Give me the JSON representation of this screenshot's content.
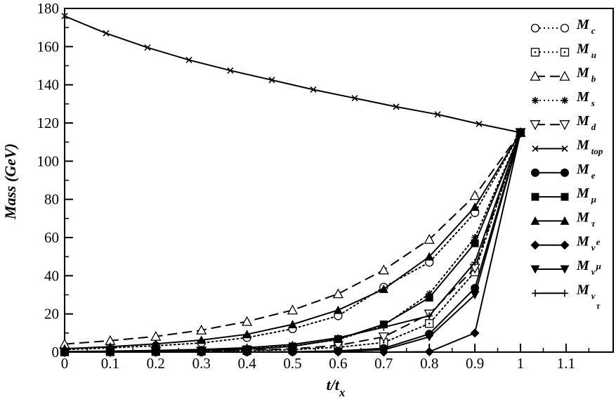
{
  "chart_data": {
    "type": "line",
    "xlabel": {
      "main": "t/t",
      "sub": "x"
    },
    "ylabel": "Mass (GeV)",
    "xlim": [
      0,
      1.2
    ],
    "ylim": [
      0,
      180
    ],
    "x_ticks": [
      "0",
      "0.1",
      "0.2",
      "0.3",
      "0.4",
      "0.5",
      "0.6",
      "0.7",
      "0.8",
      "0.9",
      "1",
      "1.1"
    ],
    "y_ticks": [
      "0",
      "20",
      "40",
      "60",
      "80",
      "100",
      "120",
      "140",
      "160",
      "180"
    ],
    "grid": false,
    "legend_position": "right",
    "series": [
      {
        "name": "M",
        "sub": "c",
        "marker": "circle-open",
        "dash": "dotted",
        "x": [
          0,
          0.1,
          0.2,
          0.3,
          0.4,
          0.5,
          0.6,
          0.7,
          0.8,
          0.9,
          1.0
        ],
        "y": [
          1.3,
          2.2,
          3.3,
          4.8,
          7.6,
          12.2,
          19,
          34,
          47,
          73,
          115
        ]
      },
      {
        "name": "M",
        "sub": "u",
        "marker": "square-dot",
        "dash": "dotted",
        "x": [
          0,
          0.1,
          0.2,
          0.3,
          0.4,
          0.5,
          0.6,
          0.7,
          0.8,
          0.9,
          1.0
        ],
        "y": [
          0.1,
          0.2,
          0.3,
          0.5,
          0.8,
          1.3,
          2.5,
          5,
          15,
          42,
          115
        ]
      },
      {
        "name": "M",
        "sub": "b",
        "marker": "triangle-open",
        "dash": "dashed",
        "x": [
          0,
          0.1,
          0.2,
          0.3,
          0.4,
          0.5,
          0.6,
          0.7,
          0.8,
          0.9,
          1.0
        ],
        "y": [
          4.2,
          6,
          8.2,
          11.5,
          16,
          22,
          30.5,
          43,
          59,
          82,
          115
        ]
      },
      {
        "name": "M",
        "sub": "s",
        "marker": "star",
        "dash": "dotted",
        "x": [
          0,
          0.1,
          0.2,
          0.3,
          0.4,
          0.5,
          0.6,
          0.7,
          0.8,
          0.9,
          1.0
        ],
        "y": [
          0.2,
          0.4,
          0.7,
          1.1,
          1.8,
          3.2,
          6.5,
          14,
          30.5,
          60,
          115
        ]
      },
      {
        "name": "M",
        "sub": "d",
        "marker": "triangle-down-open",
        "dash": "dashed",
        "x": [
          0,
          0.1,
          0.2,
          0.3,
          0.4,
          0.5,
          0.6,
          0.7,
          0.8,
          0.9,
          1.0
        ],
        "y": [
          0.1,
          0.2,
          0.4,
          0.6,
          1,
          1.7,
          3.5,
          8,
          20,
          44,
          115
        ]
      },
      {
        "name": "M",
        "sub": "top",
        "marker": "x",
        "dash": "solid",
        "x": [
          0,
          0.0909,
          0.1818,
          0.2727,
          0.3636,
          0.4545,
          0.5455,
          0.6364,
          0.7273,
          0.8182,
          0.9091,
          1.0
        ],
        "y": [
          176,
          167,
          159.5,
          153,
          147.5,
          142.5,
          137.5,
          133,
          128.5,
          124.5,
          119.5,
          115
        ]
      },
      {
        "name": "M",
        "sub": "e",
        "marker": "circle-filled",
        "dash": "solid",
        "x": [
          0,
          0.1,
          0.2,
          0.3,
          0.4,
          0.5,
          0.6,
          0.7,
          0.8,
          0.9,
          1.0
        ],
        "y": [
          0,
          0,
          0,
          0,
          0.1,
          0.2,
          0.6,
          2,
          9.5,
          33.5,
          115
        ]
      },
      {
        "name": "M",
        "sub": "μ",
        "marker": "square-filled",
        "dash": "solid",
        "x": [
          0,
          0.1,
          0.2,
          0.3,
          0.4,
          0.5,
          0.6,
          0.7,
          0.8,
          0.9,
          1.0
        ],
        "y": [
          0.1,
          0.2,
          0.4,
          0.8,
          1.5,
          3,
          6.8,
          14.5,
          28.5,
          57,
          115
        ]
      },
      {
        "name": "M",
        "sub": "τ",
        "marker": "triangle-filled",
        "dash": "solid",
        "x": [
          0,
          0.1,
          0.2,
          0.3,
          0.4,
          0.5,
          0.6,
          0.7,
          0.8,
          0.9,
          1.0
        ],
        "y": [
          1.8,
          2.8,
          4.3,
          6.3,
          9.3,
          14.5,
          22,
          33,
          50,
          76,
          115
        ]
      },
      {
        "name": "M",
        "sub": "ν",
        "sub2": "e",
        "marker": "diamond-filled",
        "dash": "solid",
        "x": [
          0,
          0.1,
          0.2,
          0.3,
          0.4,
          0.5,
          0.6,
          0.7,
          0.8,
          0.9,
          1.0
        ],
        "y": [
          0,
          0,
          0,
          0,
          0,
          0,
          0,
          0,
          0.2,
          10,
          115
        ]
      },
      {
        "name": "M",
        "sub": "ν",
        "sub2": "μ",
        "marker": "triangle-down-filled",
        "dash": "solid",
        "x": [
          0,
          0.1,
          0.2,
          0.3,
          0.4,
          0.5,
          0.6,
          0.7,
          0.8,
          0.9,
          1.0
        ],
        "y": [
          0,
          0,
          0,
          0,
          0,
          0.1,
          0.3,
          1.2,
          8,
          30,
          115
        ]
      },
      {
        "name": "M",
        "sub": "ν",
        "sub2": "τ",
        "marker": "plus",
        "dash": "solid",
        "x": [
          0,
          0.1,
          0.2,
          0.3,
          0.4,
          0.5,
          0.6,
          0.7,
          0.8,
          0.9,
          1.0
        ],
        "y": [
          0.3,
          0.5,
          0.9,
          1.4,
          2.3,
          4,
          7.5,
          13,
          19,
          47,
          115
        ]
      }
    ]
  }
}
